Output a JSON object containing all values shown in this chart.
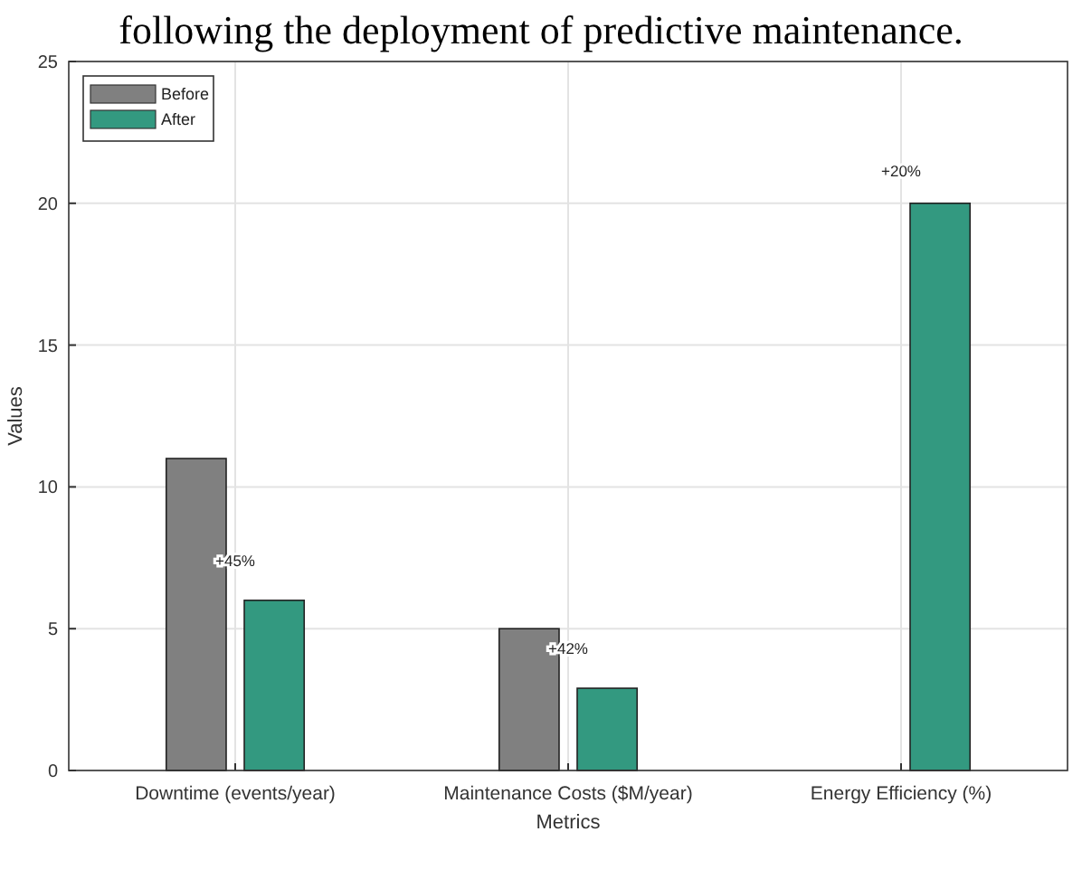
{
  "chart_data": {
    "type": "bar",
    "title": "following the deployment of predictive maintenance.",
    "xlabel": "Metrics",
    "ylabel": "Values",
    "categories": [
      "Downtime (events/year)",
      "Maintenance Costs ($M/year)",
      "Energy Efficiency (%)"
    ],
    "series": [
      {
        "name": "Before",
        "color": "#808080",
        "values": [
          11,
          5,
          null
        ]
      },
      {
        "name": "After",
        "color": "#339980",
        "values": [
          6,
          2.9,
          20
        ]
      }
    ],
    "ylim": [
      0,
      25
    ],
    "yticks": [
      0,
      5,
      10,
      15,
      20,
      25
    ],
    "grid": true,
    "legend": "top left",
    "annotations": [
      {
        "text": "+45%",
        "x": "Downtime (events/year)",
        "y": 7.4
      },
      {
        "text": "+42%",
        "x": "Maintenance Costs ($M/year)",
        "y": 4.3
      },
      {
        "text": "+20%",
        "x": "Energy Efficiency (%)",
        "y": 20
      }
    ]
  }
}
